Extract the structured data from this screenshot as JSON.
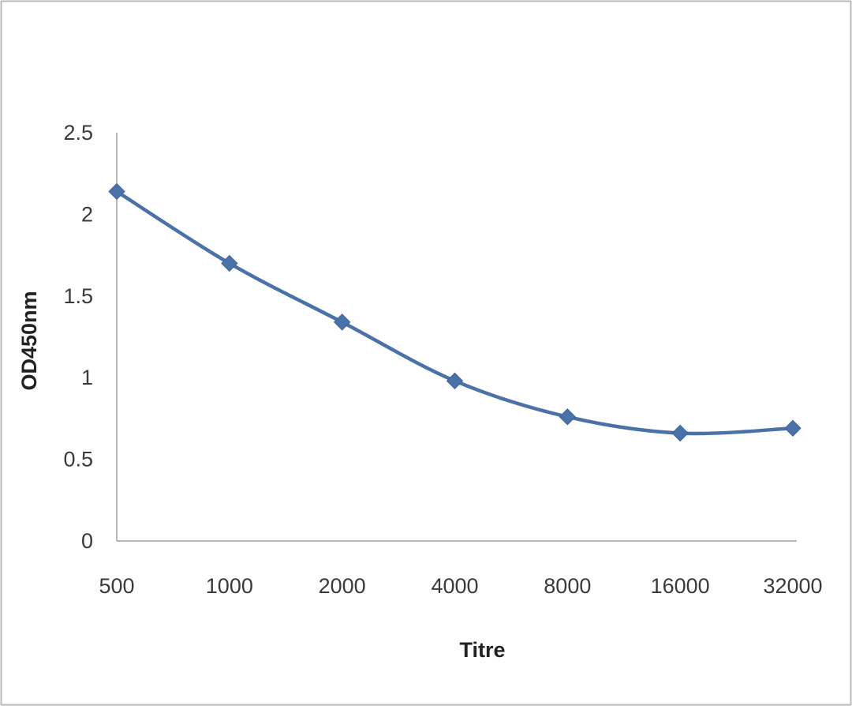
{
  "chart_data": {
    "type": "line",
    "title": "",
    "xlabel": "Titre",
    "ylabel": "OD450nm",
    "categories": [
      "500",
      "1000",
      "2000",
      "4000",
      "8000",
      "16000",
      "32000"
    ],
    "series": [
      {
        "values": [
          2.14,
          1.7,
          1.34,
          0.98,
          0.76,
          0.66,
          0.69
        ],
        "color": "#4a72a8",
        "marker": "diamond",
        "smooth": true
      }
    ],
    "ylim": [
      0,
      2.5
    ],
    "yticks": [
      "0",
      "0.5",
      "1",
      "1.5",
      "2",
      "2.5"
    ],
    "grid": false,
    "legend": "none"
  }
}
